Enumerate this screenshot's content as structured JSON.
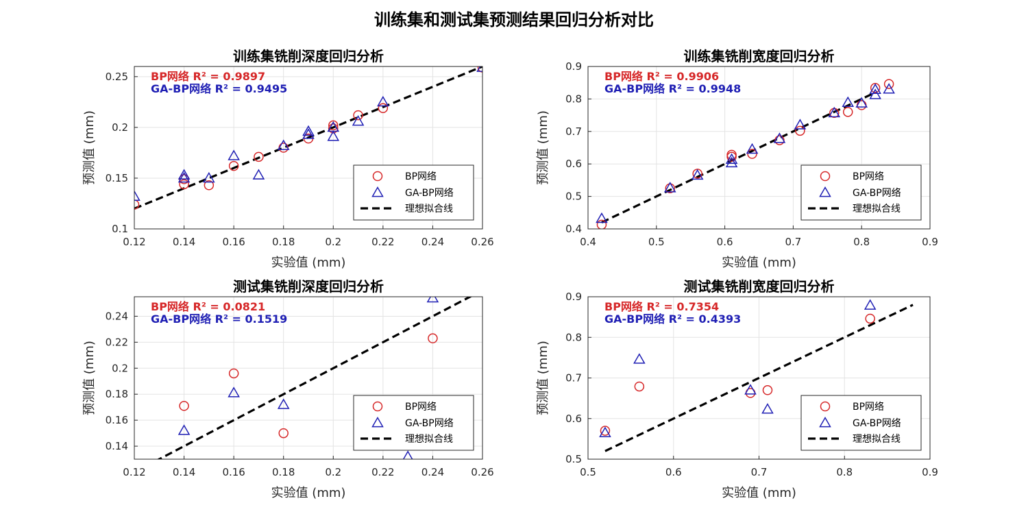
{
  "suptitle": "训练集和测试集预测结果回归分析对比",
  "colors": {
    "bp": "#d62728",
    "gabp": "#1f1fb4",
    "ideal": "#000000",
    "grid": "#e3e3e3",
    "axis": "#262626"
  },
  "legend": {
    "bp": "BP网络",
    "gabp": "GA-BP网络",
    "ideal": "理想拟合线"
  },
  "chart_data": [
    {
      "type": "scatter",
      "title": "训练集铣削深度回归分析",
      "xlabel": "实验值 (mm)",
      "ylabel": "预测值 (mm)",
      "xlim": [
        0.12,
        0.26
      ],
      "ylim": [
        0.1,
        0.26
      ],
      "xticks": [
        "0.12",
        "0.14",
        "0.16",
        "0.18",
        "0.2",
        "0.22",
        "0.24",
        "0.26"
      ],
      "yticks": [
        "0.1",
        "0.15",
        "0.2",
        "0.25"
      ],
      "r2_bp": "BP网络 R² = 0.9897",
      "r2_gabp": "GA-BP网络 R² = 0.9495",
      "ideal_line": [
        [
          0.12,
          0.12
        ],
        [
          0.26,
          0.26
        ]
      ],
      "series": [
        {
          "name": "BP网络",
          "marker": "circle",
          "x": [
            0.12,
            0.14,
            0.14,
            0.15,
            0.16,
            0.17,
            0.18,
            0.19,
            0.2,
            0.2,
            0.21,
            0.22,
            0.26
          ],
          "y": [
            0.124,
            0.144,
            0.149,
            0.143,
            0.162,
            0.171,
            0.18,
            0.189,
            0.202,
            0.199,
            0.212,
            0.219,
            0.259
          ]
        },
        {
          "name": "GA-BP网络",
          "marker": "triangle",
          "x": [
            0.12,
            0.14,
            0.14,
            0.15,
            0.16,
            0.17,
            0.18,
            0.19,
            0.19,
            0.2,
            0.2,
            0.21,
            0.22,
            0.26
          ],
          "y": [
            0.132,
            0.153,
            0.15,
            0.15,
            0.172,
            0.153,
            0.182,
            0.196,
            0.193,
            0.2,
            0.191,
            0.206,
            0.225,
            0.259
          ]
        }
      ]
    },
    {
      "type": "scatter",
      "title": "训练集铣削宽度回归分析",
      "xlabel": "实验值 (mm)",
      "ylabel": "预测值 (mm)",
      "xlim": [
        0.4,
        0.9
      ],
      "ylim": [
        0.4,
        0.9
      ],
      "xticks": [
        "0.4",
        "0.5",
        "0.6",
        "0.7",
        "0.8",
        "0.9"
      ],
      "yticks": [
        "0.4",
        "0.5",
        "0.6",
        "0.7",
        "0.8",
        "0.9"
      ],
      "r2_bp": "BP网络 R² = 0.9906",
      "r2_gabp": "GA-BP网络 R² = 0.9948",
      "ideal_line": [
        [
          0.42,
          0.42
        ],
        [
          0.82,
          0.82
        ]
      ],
      "series": [
        {
          "name": "BP网络",
          "marker": "circle",
          "x": [
            0.42,
            0.52,
            0.56,
            0.61,
            0.61,
            0.64,
            0.68,
            0.71,
            0.76,
            0.78,
            0.8,
            0.82,
            0.84
          ],
          "y": [
            0.413,
            0.525,
            0.57,
            0.628,
            0.622,
            0.631,
            0.673,
            0.702,
            0.757,
            0.76,
            0.781,
            0.834,
            0.846
          ]
        },
        {
          "name": "GA-BP网络",
          "marker": "triangle",
          "x": [
            0.42,
            0.52,
            0.56,
            0.61,
            0.61,
            0.64,
            0.68,
            0.71,
            0.76,
            0.78,
            0.8,
            0.82,
            0.82,
            0.84
          ],
          "y": [
            0.432,
            0.526,
            0.565,
            0.614,
            0.603,
            0.645,
            0.678,
            0.72,
            0.757,
            0.789,
            0.787,
            0.813,
            0.829,
            0.83
          ]
        }
      ]
    },
    {
      "type": "scatter",
      "title": "测试集铣削深度回归分析",
      "xlabel": "实验值 (mm)",
      "ylabel": "预测值 (mm)",
      "xlim": [
        0.12,
        0.26
      ],
      "ylim": [
        0.13,
        0.255
      ],
      "xticks": [
        "0.12",
        "0.14",
        "0.16",
        "0.18",
        "0.2",
        "0.22",
        "0.24",
        "0.26"
      ],
      "yticks": [
        "0.14",
        "0.16",
        "0.18",
        "0.2",
        "0.22",
        "0.24"
      ],
      "r2_bp": "BP网络 R² = 0.0821",
      "r2_gabp": "GA-BP网络 R² = 0.1519",
      "ideal_line": [
        [
          0.12,
          0.12
        ],
        [
          0.26,
          0.26
        ]
      ],
      "series": [
        {
          "name": "BP网络",
          "marker": "circle",
          "x": [
            0.14,
            0.16,
            0.18,
            0.24
          ],
          "y": [
            0.171,
            0.196,
            0.15,
            0.223
          ]
        },
        {
          "name": "GA-BP网络",
          "marker": "triangle",
          "x": [
            0.14,
            0.16,
            0.18,
            0.23,
            0.24
          ],
          "y": [
            0.152,
            0.181,
            0.172,
            0.132,
            0.254
          ]
        }
      ]
    },
    {
      "type": "scatter",
      "title": "测试集铣削宽度回归分析",
      "xlabel": "实验值 (mm)",
      "ylabel": "预测值 (mm)",
      "xlim": [
        0.5,
        0.9
      ],
      "ylim": [
        0.5,
        0.9
      ],
      "xticks": [
        "0.5",
        "0.6",
        "0.7",
        "0.8",
        "0.9"
      ],
      "yticks": [
        "0.5",
        "0.6",
        "0.7",
        "0.8",
        "0.9"
      ],
      "r2_bp": "BP网络 R² = 0.7354",
      "r2_gabp": "GA-BP网络 R² = 0.4393",
      "ideal_line": [
        [
          0.52,
          0.52
        ],
        [
          0.88,
          0.88
        ]
      ],
      "series": [
        {
          "name": "BP网络",
          "marker": "circle",
          "x": [
            0.52,
            0.56,
            0.69,
            0.71,
            0.83
          ],
          "y": [
            0.57,
            0.679,
            0.663,
            0.67,
            0.846
          ]
        },
        {
          "name": "GA-BP网络",
          "marker": "triangle",
          "x": [
            0.52,
            0.56,
            0.69,
            0.71,
            0.83
          ],
          "y": [
            0.565,
            0.746,
            0.67,
            0.623,
            0.879
          ]
        }
      ]
    }
  ]
}
